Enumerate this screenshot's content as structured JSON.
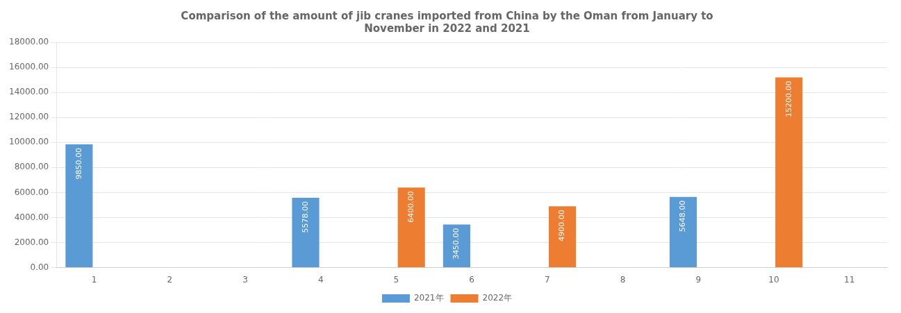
{
  "chart_data": {
    "type": "bar",
    "title": "Comparison of the amount of jib cranes imported from China by the Oman from January to\nNovember in 2022 and 2021",
    "categories": [
      "1",
      "2",
      "3",
      "4",
      "5",
      "6",
      "7",
      "8",
      "9",
      "10",
      "11"
    ],
    "series": [
      {
        "name": "2021年",
        "color": "#5b9bd5",
        "values": [
          9850,
          null,
          null,
          5578,
          null,
          3450,
          null,
          null,
          5648,
          null,
          null
        ],
        "value_labels": [
          "9850.00",
          null,
          null,
          "5578.00",
          null,
          "3450.00",
          null,
          null,
          "5648.00",
          null,
          null
        ]
      },
      {
        "name": "2022年",
        "color": "#ed7d31",
        "values": [
          null,
          null,
          null,
          null,
          6400,
          null,
          4900,
          null,
          null,
          15200,
          null
        ],
        "value_labels": [
          null,
          null,
          null,
          null,
          "6400.00",
          null,
          "4900.00",
          null,
          null,
          "15200.00",
          null
        ]
      }
    ],
    "ylim": [
      0,
      18000
    ],
    "yticks": [
      {
        "value": 0,
        "label": "0.00"
      },
      {
        "value": 2000,
        "label": "2000.00"
      },
      {
        "value": 4000,
        "label": "4000.00"
      },
      {
        "value": 6000,
        "label": "6000.00"
      },
      {
        "value": 8000,
        "label": "8000.00"
      },
      {
        "value": 10000,
        "label": "10000.00"
      },
      {
        "value": 12000,
        "label": "12000.00"
      },
      {
        "value": 14000,
        "label": "14000.00"
      },
      {
        "value": 16000,
        "label": "16000.00"
      },
      {
        "value": 18000,
        "label": "18000.00"
      }
    ],
    "grid": true,
    "legend": "bottom",
    "data_labels": true
  }
}
